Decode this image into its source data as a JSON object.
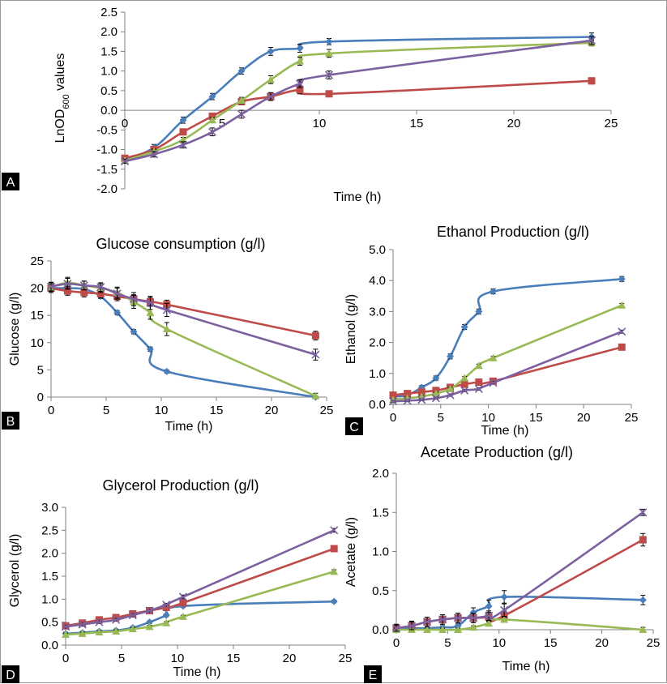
{
  "figure": {
    "colors": {
      "blue": "#4a7ebb",
      "red": "#be4b48",
      "green": "#98b954",
      "purple": "#7d60a0"
    },
    "series_markers": [
      "diamond",
      "square",
      "triangle",
      "cross"
    ]
  },
  "chart_data": [
    {
      "id": "A",
      "panel_label": "A",
      "type": "line",
      "title": "",
      "xlabel": "Time (h)",
      "ylabel_main": "LnOD",
      "ylabel_sub": "600",
      "ylabel_tail": " values",
      "xlim": [
        0,
        25
      ],
      "ylim": [
        -2.0,
        2.5
      ],
      "xticks": [
        0,
        5,
        10,
        15,
        20,
        25
      ],
      "xtick_labels": [
        "0",
        "5",
        "10",
        "15",
        "20",
        "25"
      ],
      "yticks": [
        -2.0,
        -1.5,
        -1.0,
        -0.5,
        0.0,
        0.5,
        1.0,
        1.5,
        2.0,
        2.5
      ],
      "ytick_labels": [
        "-2.0",
        "-1.5",
        "-1.0",
        "-0.5",
        "0.0",
        "0.5",
        "1.0",
        "1.5",
        "2.0",
        "2.5"
      ],
      "x": [
        0,
        1.5,
        3,
        4.5,
        6,
        7.5,
        9,
        10.5,
        24
      ],
      "series": [
        {
          "color": "blue",
          "marker": "diamond",
          "values": [
            -1.25,
            -0.95,
            -0.25,
            0.35,
            1.0,
            1.5,
            1.58,
            1.75,
            1.87
          ],
          "err": [
            0.05,
            0.08,
            0.08,
            0.08,
            0.08,
            0.1,
            0.1,
            0.08,
            0.1
          ]
        },
        {
          "color": "red",
          "marker": "square",
          "values": [
            -1.22,
            -1.0,
            -0.55,
            -0.15,
            0.22,
            0.35,
            0.52,
            0.42,
            0.75
          ],
          "err": [
            0.05,
            0.06,
            0.06,
            0.06,
            0.06,
            0.08,
            0.1,
            0.07,
            0.08
          ]
        },
        {
          "color": "green",
          "marker": "triangle",
          "values": [
            -1.28,
            -1.05,
            -0.75,
            -0.25,
            0.25,
            0.78,
            1.25,
            1.45,
            1.72
          ],
          "err": [
            0.05,
            0.06,
            0.06,
            0.06,
            0.08,
            0.1,
            0.1,
            0.1,
            0.08
          ]
        },
        {
          "color": "purple",
          "marker": "cross",
          "values": [
            -1.3,
            -1.12,
            -0.88,
            -0.55,
            -0.1,
            0.35,
            0.68,
            0.9,
            1.78
          ],
          "err": [
            0.05,
            0.07,
            0.08,
            0.1,
            0.1,
            0.1,
            0.1,
            0.1,
            0.1
          ]
        }
      ]
    },
    {
      "id": "B",
      "panel_label": "B",
      "type": "line",
      "title": "Glucose consumption (g/l)",
      "xlabel": "Time (h)",
      "ylabel": "Glucose (g/l)",
      "xlim": [
        0,
        25
      ],
      "ylim": [
        0,
        25
      ],
      "xticks": [
        0,
        5,
        10,
        15,
        20,
        25
      ],
      "xtick_labels": [
        "0",
        "5",
        "10",
        "15",
        "20",
        "25"
      ],
      "yticks": [
        0,
        5,
        10,
        15,
        20,
        25
      ],
      "ytick_labels": [
        "0",
        "5",
        "10",
        "15",
        "20",
        "25"
      ],
      "x": [
        0,
        1.5,
        3,
        4.5,
        6,
        7.5,
        9,
        10.5,
        24
      ],
      "series": [
        {
          "color": "blue",
          "marker": "diamond",
          "values": [
            20.0,
            20.0,
            19.8,
            18.5,
            15.5,
            12.0,
            8.8,
            4.7,
            0.0
          ],
          "err": [
            0.4,
            0.4,
            0.4,
            0.4,
            0.4,
            0.4,
            0.4,
            0.3,
            0.2
          ]
        },
        {
          "color": "red",
          "marker": "square",
          "values": [
            20.0,
            19.5,
            19.2,
            19.0,
            18.5,
            18.0,
            17.5,
            17.0,
            11.3
          ],
          "err": [
            0.8,
            0.8,
            0.8,
            0.8,
            0.8,
            0.8,
            0.8,
            0.8,
            0.8
          ]
        },
        {
          "color": "green",
          "marker": "triangle",
          "values": [
            20.2,
            21.0,
            20.5,
            20.0,
            19.2,
            17.5,
            15.5,
            12.5,
            0.2
          ],
          "err": [
            0.8,
            1.0,
            0.8,
            0.8,
            1.0,
            1.2,
            1.2,
            1.2,
            0.5
          ]
        },
        {
          "color": "purple",
          "marker": "cross",
          "values": [
            20.3,
            20.8,
            20.5,
            20.2,
            19.0,
            18.0,
            17.3,
            16.0,
            7.8
          ],
          "err": [
            0.8,
            1.0,
            0.8,
            0.8,
            1.0,
            1.2,
            1.2,
            1.2,
            1.0
          ]
        }
      ]
    },
    {
      "id": "C",
      "panel_label": "C",
      "type": "line",
      "title": "Ethanol Production (g/l)",
      "xlabel": "Time (h)",
      "ylabel": "Ethanol (g/l)",
      "xlim": [
        0,
        25
      ],
      "ylim": [
        0,
        5
      ],
      "xticks": [
        0,
        5,
        10,
        15,
        20,
        25
      ],
      "xtick_labels": [
        "0",
        "5",
        "10",
        "15",
        "20",
        "25"
      ],
      "yticks": [
        0,
        1,
        2,
        3,
        4,
        5
      ],
      "ytick_labels": [
        "0.0",
        "1.0",
        "2.0",
        "3.0",
        "4.0",
        "5.0"
      ],
      "x": [
        0,
        1.5,
        3,
        4.5,
        6,
        7.5,
        9,
        10.5,
        24
      ],
      "series": [
        {
          "color": "blue",
          "marker": "diamond",
          "values": [
            0.25,
            0.3,
            0.55,
            0.85,
            1.55,
            2.5,
            3.0,
            3.65,
            4.05
          ],
          "err": [
            0.05,
            0.05,
            0.06,
            0.07,
            0.08,
            0.08,
            0.08,
            0.08,
            0.08
          ]
        },
        {
          "color": "red",
          "marker": "square",
          "values": [
            0.3,
            0.35,
            0.4,
            0.45,
            0.55,
            0.65,
            0.72,
            0.75,
            1.85
          ],
          "err": [
            0.04,
            0.04,
            0.04,
            0.04,
            0.04,
            0.04,
            0.04,
            0.04,
            0.05
          ]
        },
        {
          "color": "green",
          "marker": "triangle",
          "values": [
            0.15,
            0.2,
            0.25,
            0.35,
            0.5,
            0.85,
            1.25,
            1.5,
            3.2
          ],
          "err": [
            0.04,
            0.04,
            0.04,
            0.04,
            0.05,
            0.05,
            0.05,
            0.05,
            0.06
          ]
        },
        {
          "color": "purple",
          "marker": "cross",
          "values": [
            0.1,
            0.12,
            0.15,
            0.2,
            0.3,
            0.45,
            0.5,
            0.7,
            2.35
          ],
          "err": [
            0.03,
            0.03,
            0.03,
            0.03,
            0.04,
            0.04,
            0.04,
            0.04,
            0.05
          ]
        }
      ]
    },
    {
      "id": "D",
      "panel_label": "D",
      "type": "line",
      "title": "Glycerol Production (g/l)",
      "xlabel": "Time (h)",
      "ylabel": "Glycerol (g/l)",
      "xlim": [
        0,
        25
      ],
      "ylim": [
        0,
        3
      ],
      "xticks": [
        0,
        5,
        10,
        15,
        20,
        25
      ],
      "xtick_labels": [
        "0",
        "5",
        "10",
        "15",
        "20",
        "25"
      ],
      "yticks": [
        0,
        0.5,
        1.0,
        1.5,
        2.0,
        2.5,
        3.0
      ],
      "ytick_labels": [
        "0.0",
        "0.5",
        "1.0",
        "1.5",
        "2.0",
        "2.5",
        "3.0"
      ],
      "x": [
        0,
        1.5,
        3,
        4.5,
        6,
        7.5,
        9,
        10.5,
        24
      ],
      "series": [
        {
          "color": "blue",
          "marker": "diamond",
          "values": [
            0.25,
            0.27,
            0.3,
            0.32,
            0.38,
            0.5,
            0.65,
            0.85,
            0.95
          ],
          "err": [
            0.03,
            0.03,
            0.03,
            0.03,
            0.03,
            0.03,
            0.03,
            0.03,
            0.03
          ]
        },
        {
          "color": "red",
          "marker": "square",
          "values": [
            0.42,
            0.48,
            0.55,
            0.6,
            0.68,
            0.75,
            0.82,
            0.92,
            2.1
          ],
          "err": [
            0.03,
            0.03,
            0.03,
            0.03,
            0.03,
            0.03,
            0.03,
            0.03,
            0.04
          ]
        },
        {
          "color": "green",
          "marker": "triangle",
          "values": [
            0.23,
            0.25,
            0.28,
            0.3,
            0.35,
            0.4,
            0.48,
            0.62,
            1.6
          ],
          "err": [
            0.03,
            0.03,
            0.03,
            0.03,
            0.03,
            0.03,
            0.03,
            0.03,
            0.04
          ]
        },
        {
          "color": "purple",
          "marker": "cross",
          "values": [
            0.4,
            0.45,
            0.5,
            0.55,
            0.65,
            0.75,
            0.88,
            1.05,
            2.5
          ],
          "err": [
            0.03,
            0.03,
            0.03,
            0.03,
            0.03,
            0.03,
            0.03,
            0.04,
            0.04
          ]
        }
      ]
    },
    {
      "id": "E",
      "panel_label": "E",
      "type": "line",
      "title": "Acetate Production (g/l)",
      "xlabel": "Time (h)",
      "ylabel": "Acetate (g/l)",
      "xlim": [
        0,
        25
      ],
      "ylim": [
        0,
        2
      ],
      "xticks": [
        0,
        5,
        10,
        15,
        20,
        25
      ],
      "xtick_labels": [
        "0",
        "5",
        "10",
        "15",
        "20",
        "25"
      ],
      "yticks": [
        0,
        0.5,
        1.0,
        1.5,
        2.0
      ],
      "ytick_labels": [
        "0.0",
        "0.5",
        "1.0",
        "1.5",
        "2.0"
      ],
      "x": [
        0,
        1.5,
        3,
        4.5,
        6,
        7.5,
        9,
        10.5,
        24
      ],
      "series": [
        {
          "color": "blue",
          "marker": "diamond",
          "values": [
            0.02,
            0.02,
            0.02,
            0.03,
            0.05,
            0.22,
            0.3,
            0.42,
            0.38
          ],
          "err": [
            0.02,
            0.02,
            0.02,
            0.02,
            0.03,
            0.06,
            0.08,
            0.08,
            0.06
          ]
        },
        {
          "color": "red",
          "marker": "square",
          "values": [
            0.02,
            0.05,
            0.1,
            0.13,
            0.15,
            0.15,
            0.16,
            0.18,
            1.15
          ],
          "err": [
            0.05,
            0.06,
            0.06,
            0.06,
            0.06,
            0.06,
            0.06,
            0.06,
            0.08
          ]
        },
        {
          "color": "green",
          "marker": "triangle",
          "values": [
            0.0,
            0.0,
            0.0,
            0.0,
            0.0,
            0.03,
            0.08,
            0.13,
            0.0
          ],
          "err": [
            0.02,
            0.02,
            0.02,
            0.02,
            0.02,
            0.02,
            0.03,
            0.03,
            0.03
          ]
        },
        {
          "color": "purple",
          "marker": "cross",
          "values": [
            0.02,
            0.05,
            0.1,
            0.13,
            0.15,
            0.15,
            0.18,
            0.25,
            1.5
          ],
          "err": [
            0.04,
            0.05,
            0.06,
            0.06,
            0.06,
            0.06,
            0.06,
            0.08,
            0.04
          ]
        }
      ]
    }
  ]
}
